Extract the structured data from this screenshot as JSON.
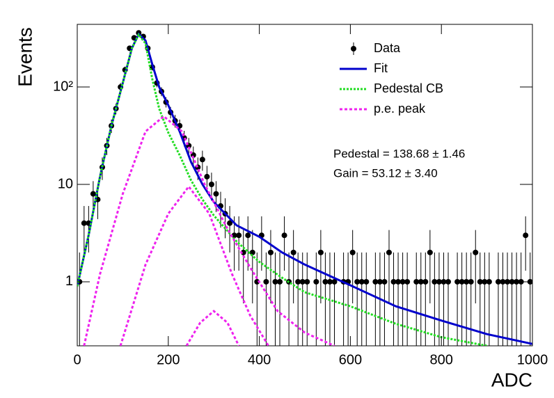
{
  "chart_data": {
    "type": "scatter",
    "x_label": "ADC",
    "y_label": "Events",
    "log_y": true,
    "xlim": [
      0,
      1000
    ],
    "ylim": [
      0.22,
      440
    ],
    "xticks": [
      0,
      200,
      400,
      600,
      800,
      1000
    ],
    "yticks": [
      1,
      10,
      {
        "value": 100,
        "label": "10²"
      }
    ],
    "legend": "top-right",
    "annotations": [
      "Pedestal = 138.68 ± 1.46",
      "Gain = 53.12 ± 3.40"
    ],
    "series": [
      {
        "name": "Data",
        "kind": "points",
        "color": "#000000",
        "x": [
          5,
          15,
          25,
          35,
          45,
          55,
          65,
          75,
          85,
          95,
          105,
          115,
          125,
          135,
          145,
          155,
          165,
          175,
          185,
          195,
          205,
          215,
          225,
          235,
          245,
          255,
          265,
          275,
          285,
          295,
          305,
          315,
          325,
          335,
          345,
          355,
          365,
          375,
          385,
          395,
          405,
          415,
          425,
          435,
          445,
          455,
          465,
          475,
          485,
          495,
          505,
          515,
          525,
          535,
          545,
          555,
          565,
          575,
          585,
          595,
          605,
          615,
          625,
          635,
          645,
          655,
          665,
          675,
          685,
          695,
          705,
          715,
          725,
          735,
          745,
          755,
          765,
          775,
          785,
          795,
          805,
          815,
          825,
          835,
          845,
          855,
          865,
          875,
          885,
          895,
          905,
          915,
          925,
          935,
          945,
          955,
          965,
          975,
          985,
          995
        ],
        "values": [
          1,
          4,
          4,
          8,
          7,
          15,
          25,
          40,
          60,
          100,
          150,
          250,
          320,
          360,
          330,
          250,
          160,
          110,
          90,
          70,
          55,
          45,
          40,
          30,
          25,
          20,
          15,
          18,
          12,
          10,
          8,
          6,
          5,
          4,
          3,
          3,
          2,
          3,
          2,
          1,
          3,
          1,
          2,
          1,
          1,
          3,
          1,
          2,
          1,
          1,
          1,
          null,
          1,
          2,
          1,
          1,
          1,
          null,
          1,
          1,
          2,
          1,
          1,
          1,
          null,
          1,
          1,
          1,
          2,
          1,
          1,
          1,
          1,
          null,
          1,
          1,
          1,
          2,
          1,
          1,
          1,
          1,
          null,
          1,
          1,
          1,
          1,
          2,
          1,
          1,
          1,
          null,
          1,
          1,
          1,
          1,
          1,
          1,
          3,
          1
        ],
        "errors": [
          1,
          2,
          2,
          2.8,
          2.6,
          3.9,
          5,
          6.3,
          7.7,
          10,
          12.2,
          15.8,
          17.9,
          19,
          18.2,
          15.8,
          12.6,
          10.5,
          9.5,
          8.4,
          7.4,
          6.7,
          6.3,
          5.5,
          5,
          4.5,
          3.9,
          4.2,
          3.5,
          3.2,
          2.8,
          2.4,
          2.2,
          2,
          1.7,
          1.7,
          1.4,
          1.7,
          1.4,
          1,
          1.7,
          1,
          1.4,
          1,
          1,
          1.7,
          1,
          1.4,
          1,
          1,
          1,
          null,
          1,
          1.4,
          1,
          1,
          1,
          null,
          1,
          1,
          1.4,
          1,
          1,
          1,
          null,
          1,
          1,
          1,
          1.4,
          1,
          1,
          1,
          1,
          null,
          1,
          1,
          1,
          1.4,
          1,
          1,
          1,
          1,
          null,
          1,
          1,
          1,
          1,
          1.4,
          1,
          1,
          1,
          null,
          1,
          1,
          1,
          1,
          1,
          1,
          1.7,
          1
        ]
      },
      {
        "name": "Fit",
        "kind": "line",
        "color": "#0000cc",
        "dash": "none",
        "x": [
          0,
          25,
          50,
          75,
          100,
          120,
          135,
          150,
          165,
          180,
          200,
          225,
          250,
          275,
          300,
          350,
          400,
          450,
          500,
          600,
          700,
          800,
          900,
          1000
        ],
        "values": [
          0.9,
          3,
          12,
          40,
          110,
          250,
          350,
          300,
          170,
          100,
          65,
          35,
          17,
          10,
          6.6,
          3.8,
          2.9,
          2,
          1.5,
          0.92,
          0.56,
          0.4,
          0.29,
          0.23
        ]
      },
      {
        "name": "Pedestal CB",
        "kind": "line",
        "color": "#22dd22",
        "dash": "3 2",
        "x": [
          0,
          25,
          50,
          75,
          100,
          120,
          135,
          150,
          165,
          180,
          200,
          225,
          250,
          275,
          300,
          350,
          400,
          450,
          500,
          600,
          700,
          800,
          900,
          1000
        ],
        "values": [
          0.9,
          3,
          12,
          40,
          110,
          250,
          345,
          280,
          120,
          60,
          34,
          20,
          11,
          7,
          4.8,
          2.6,
          1.6,
          1.1,
          0.78,
          0.56,
          0.37,
          0.27,
          0.22,
          null
        ]
      },
      {
        "name": "p.e. peak",
        "kind": "line",
        "color": "#ee22ee",
        "dash": "4 3",
        "x": [
          15,
          50,
          100,
          150,
          190,
          230,
          280,
          330,
          380,
          440,
          500,
          565
        ],
        "values": [
          0.22,
          1.2,
          8,
          35,
          50,
          35,
          10,
          3.5,
          1.4,
          0.5,
          0.3,
          0.22
        ]
      },
      {
        "kind": "line",
        "color": "#ee22ee",
        "dash": "4 3",
        "x": [
          95,
          150,
          200,
          245,
          290,
          340,
          380,
          420
        ],
        "values": [
          0.22,
          1.5,
          5,
          9.5,
          5,
          1.2,
          0.45,
          0.22
        ]
      },
      {
        "kind": "line",
        "color": "#ee22ee",
        "dash": "4 3",
        "x": [
          240,
          270,
          300,
          330,
          355
        ],
        "values": [
          0.22,
          0.38,
          0.5,
          0.38,
          0.22
        ]
      }
    ]
  }
}
